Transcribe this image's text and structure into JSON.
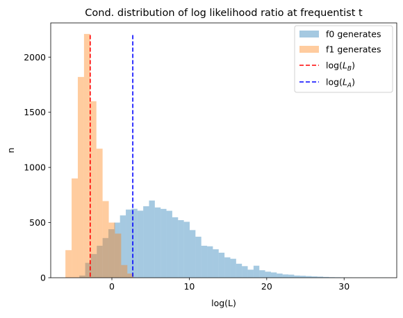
{
  "chart_data": {
    "type": "histogram",
    "title": "Cond. distribution of log likelihood ratio at frequentist  t",
    "xlabel": "log(L)",
    "ylabel": "n",
    "xlim": [
      -7.9,
      36.8
    ],
    "ylim": [
      0,
      2310
    ],
    "x_ticks": [
      0,
      10,
      20,
      30
    ],
    "y_ticks": [
      0,
      500,
      1000,
      1500,
      2000
    ],
    "grid": false,
    "legend_placement": "top-right",
    "series": [
      {
        "name": "f0 generates",
        "color": "#1f77b4",
        "alpha": 0.4,
        "bin_width": 0.75,
        "bins": [
          [
            -4.2,
            20
          ],
          [
            -3.45,
            135
          ],
          [
            -2.7,
            215
          ],
          [
            -1.95,
            290
          ],
          [
            -1.2,
            360
          ],
          [
            -0.45,
            440
          ],
          [
            0.3,
            500
          ],
          [
            1.05,
            565
          ],
          [
            1.8,
            618
          ],
          [
            2.55,
            625
          ],
          [
            3.3,
            608
          ],
          [
            4.05,
            648
          ],
          [
            4.8,
            700
          ],
          [
            5.55,
            637
          ],
          [
            6.3,
            624
          ],
          [
            7.05,
            607
          ],
          [
            7.8,
            548
          ],
          [
            8.55,
            522
          ],
          [
            9.3,
            507
          ],
          [
            10.05,
            432
          ],
          [
            10.8,
            372
          ],
          [
            11.55,
            290
          ],
          [
            12.3,
            285
          ],
          [
            13.05,
            258
          ],
          [
            13.8,
            227
          ],
          [
            14.55,
            185
          ],
          [
            15.3,
            172
          ],
          [
            16.05,
            127
          ],
          [
            16.8,
            105
          ],
          [
            17.55,
            73
          ],
          [
            18.3,
            109
          ],
          [
            19.05,
            68
          ],
          [
            19.8,
            55
          ],
          [
            20.55,
            48
          ],
          [
            21.3,
            38
          ],
          [
            22.05,
            30
          ],
          [
            22.8,
            28
          ],
          [
            23.55,
            20
          ],
          [
            24.3,
            18
          ],
          [
            25.05,
            15
          ],
          [
            25.8,
            12
          ],
          [
            26.55,
            10
          ],
          [
            27.3,
            7
          ],
          [
            28.05,
            5
          ],
          [
            28.8,
            4
          ],
          [
            29.55,
            3
          ],
          [
            30.3,
            2
          ],
          [
            31.05,
            1
          ],
          [
            31.8,
            1
          ],
          [
            32.55,
            1
          ],
          [
            33.3,
            1
          ],
          [
            34.05,
            1
          ],
          [
            34.8,
            1
          ]
        ]
      },
      {
        "name": "f1 generates",
        "color": "#ff7f0e",
        "alpha": 0.4,
        "bin_width": 0.8,
        "bins": [
          [
            -6.0,
            250
          ],
          [
            -5.2,
            900
          ],
          [
            -4.4,
            1820
          ],
          [
            -3.6,
            2210
          ],
          [
            -2.8,
            1600
          ],
          [
            -2.0,
            1170
          ],
          [
            -1.2,
            695
          ],
          [
            -0.4,
            500
          ],
          [
            0.4,
            400
          ],
          [
            1.2,
            115
          ],
          [
            2.0,
            38
          ]
        ]
      }
    ],
    "vlines": [
      {
        "name": "log($L_B$)",
        "x": -2.8,
        "y_top": 2200,
        "color": "#ff0000",
        "style": "dashed"
      },
      {
        "name": "log($L_A$)",
        "x": 2.7,
        "y_top": 2200,
        "color": "#0000ff",
        "style": "dashed"
      }
    ],
    "legend": [
      {
        "label": "f0 generates",
        "kind": "patch",
        "color": "#1f77b4"
      },
      {
        "label": "f1 generates",
        "kind": "patch",
        "color": "#ff7f0e"
      },
      {
        "label": "log(",
        "sub": "B",
        "kind": "line",
        "color": "#ff0000"
      },
      {
        "label": "log(",
        "sub": "A",
        "kind": "line",
        "color": "#0000ff"
      }
    ]
  }
}
